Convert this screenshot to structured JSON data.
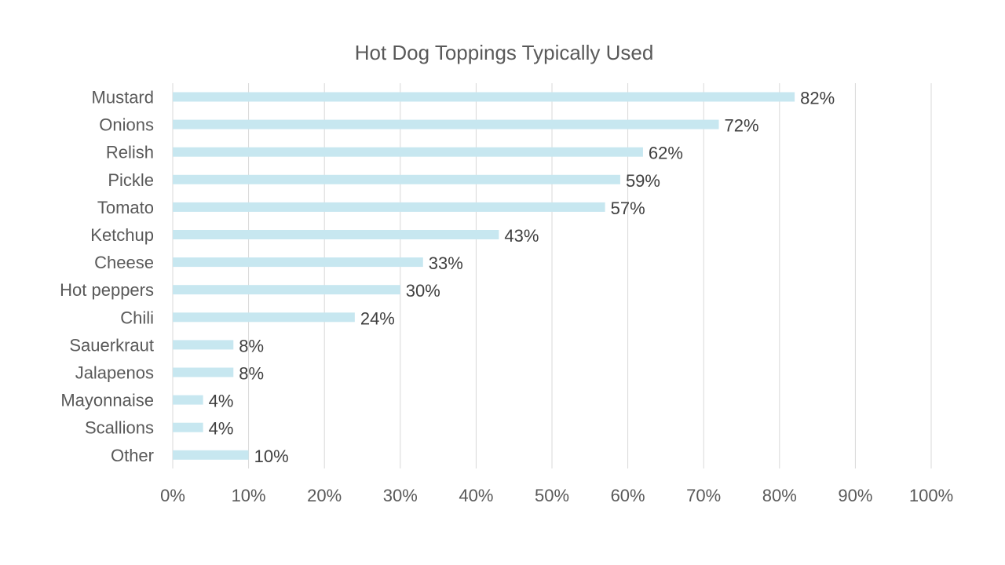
{
  "chart_data": {
    "type": "bar",
    "orientation": "horizontal",
    "title": "Hot Dog Toppings Typically Used",
    "categories": [
      "Mustard",
      "Onions",
      "Relish",
      "Pickle",
      "Tomato",
      "Ketchup",
      "Cheese",
      "Hot peppers",
      "Chili",
      "Sauerkraut",
      "Jalapenos",
      "Mayonnaise",
      "Scallions",
      "Other"
    ],
    "values": [
      82,
      72,
      62,
      59,
      57,
      43,
      33,
      30,
      24,
      8,
      8,
      4,
      4,
      10
    ],
    "data_labels": [
      "82%",
      "72%",
      "62%",
      "59%",
      "57%",
      "43%",
      "33%",
      "30%",
      "24%",
      "8%",
      "8%",
      "4%",
      "4%",
      "10%"
    ],
    "x_ticks": [
      "0%",
      "10%",
      "20%",
      "30%",
      "40%",
      "50%",
      "60%",
      "70%",
      "80%",
      "90%",
      "100%"
    ],
    "xlim": [
      0,
      100
    ],
    "xlabel": "",
    "ylabel": "",
    "grid": "vertical",
    "legend": "none",
    "colors": {
      "bar": "#c7e7f0",
      "grid": "#d9d9d9",
      "text": "#595959",
      "data_label": "#404040"
    }
  }
}
